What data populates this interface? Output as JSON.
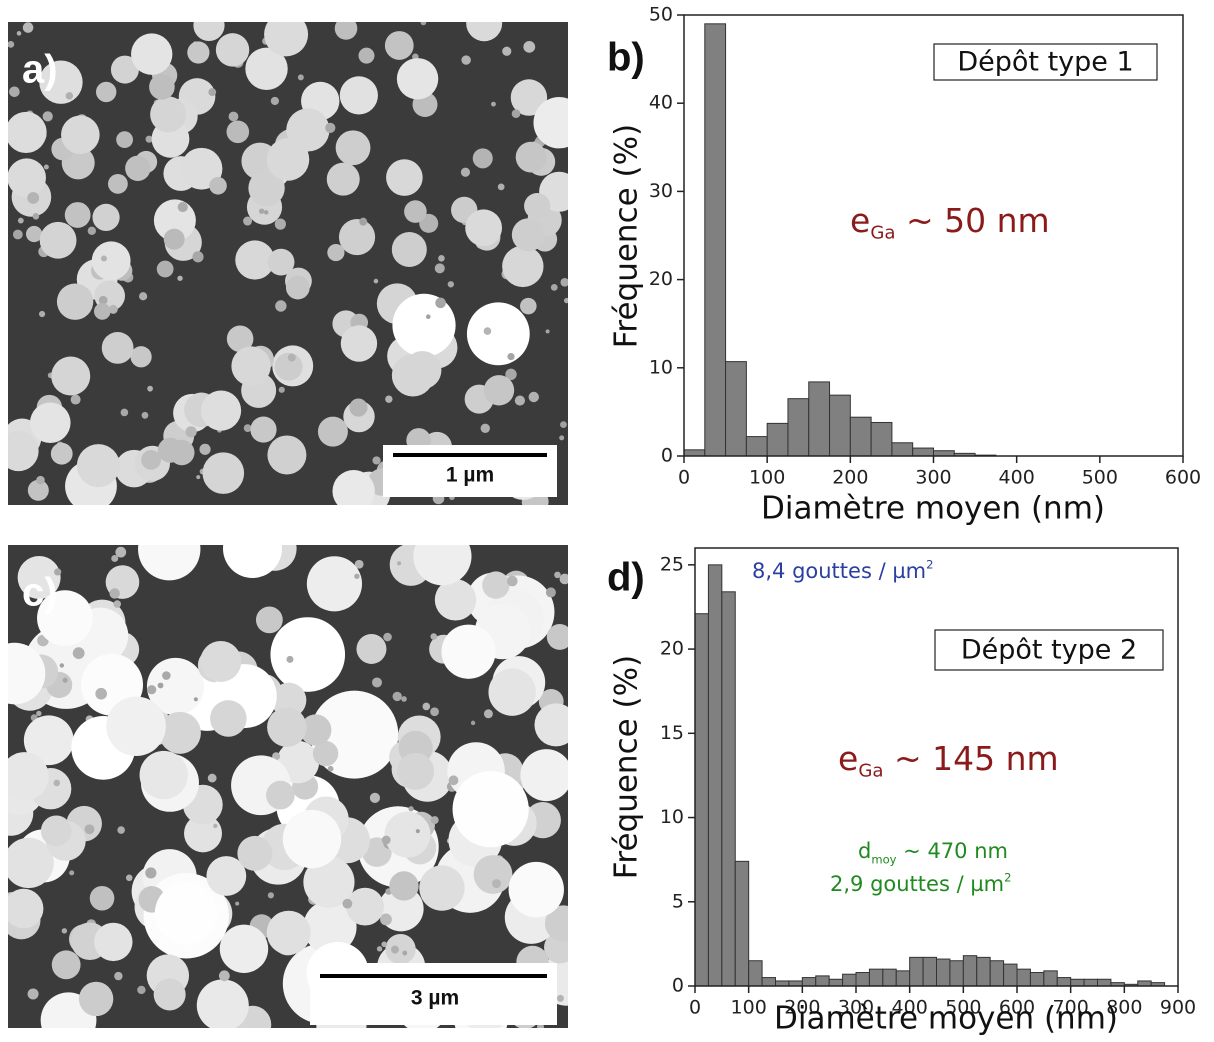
{
  "panels": [
    {
      "label": "a)",
      "scale_bar": "1 µm"
    },
    {
      "label": "c)",
      "scale_bar": "3 µm"
    }
  ],
  "chart_data": [
    {
      "type": "histogram",
      "panel_label": "b)",
      "title": "Dépôt type 1",
      "xlabel": "Diamètre moyen (nm)",
      "ylabel": "Fréquence (%)",
      "bins": [
        0,
        25,
        50,
        75,
        100,
        125,
        150,
        175,
        200,
        225,
        250,
        275,
        300,
        325,
        350,
        375
      ],
      "values": [
        0.7,
        49,
        10.7,
        2.2,
        3.7,
        6.5,
        8.4,
        6.9,
        4.4,
        3.8,
        1.5,
        0.9,
        0.6,
        0.3,
        0.1
      ],
      "color": "#808080",
      "xlim": [
        0,
        600
      ],
      "xticks": [
        0,
        100,
        200,
        300,
        400,
        500,
        600
      ],
      "ylim": [
        0,
        50
      ],
      "yticks": [
        0,
        10,
        20,
        30,
        40,
        50
      ],
      "annotations": [
        {
          "color": "#8b1a1a",
          "parts": [
            {
              "text": "e"
            },
            {
              "text": "Ga",
              "style": "sub"
            },
            {
              "text": " ~ 50 nm"
            }
          ]
        }
      ]
    },
    {
      "type": "histogram",
      "panel_label": "d)",
      "title": "Dépôt type 2",
      "xlabel": "Diamètre moyen (nm)",
      "ylabel": "Fréquence (%)",
      "bins": [
        0,
        25,
        50,
        75,
        100,
        125,
        150,
        175,
        200,
        225,
        250,
        275,
        300,
        325,
        350,
        375,
        400,
        425,
        450,
        475,
        500,
        525,
        550,
        575,
        600,
        625,
        650,
        675,
        700,
        725,
        750,
        775,
        800,
        825,
        850,
        875
      ],
      "values": [
        22.1,
        25,
        23.4,
        7.4,
        1.5,
        0.5,
        0.3,
        0.3,
        0.5,
        0.6,
        0.4,
        0.7,
        0.8,
        1.0,
        1.0,
        0.9,
        1.7,
        1.7,
        1.6,
        1.5,
        1.8,
        1.7,
        1.5,
        1.3,
        1.0,
        0.8,
        0.9,
        0.5,
        0.4,
        0.4,
        0.4,
        0.2,
        0.1,
        0.3,
        0.2
      ],
      "color": "#808080",
      "xlim": [
        0,
        900
      ],
      "xticks": [
        0,
        100,
        200,
        300,
        400,
        500,
        600,
        700,
        800,
        900
      ],
      "ylim": [
        0,
        26
      ],
      "yticks": [
        0,
        5,
        10,
        15,
        20,
        25
      ],
      "annotations": [
        {
          "color": "#2b3fa0",
          "parts": [
            {
              "text": "8,4 gouttes / µm"
            },
            {
              "text": "2",
              "style": "sup"
            }
          ]
        },
        {
          "color": "#8b1a1a",
          "parts": [
            {
              "text": "e"
            },
            {
              "text": "Ga",
              "style": "sub"
            },
            {
              "text": " ~ 145 nm"
            }
          ]
        },
        {
          "color": "#1f8a1f",
          "parts": [
            {
              "text": "d"
            },
            {
              "text": "moy",
              "style": "sub"
            },
            {
              "text": " ~ 470 nm"
            }
          ]
        },
        {
          "color": "#1f8a1f",
          "parts": [
            {
              "text": "2,9 gouttes / µm"
            },
            {
              "text": "2",
              "style": "sup"
            }
          ]
        }
      ]
    }
  ]
}
